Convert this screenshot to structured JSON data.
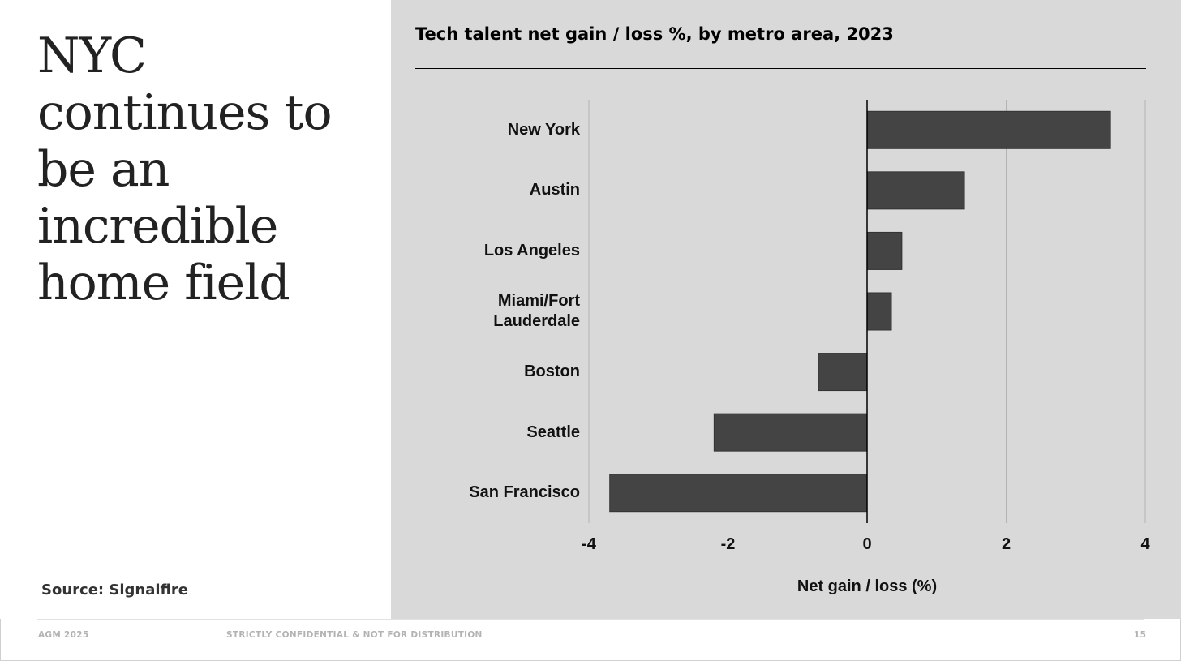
{
  "slide": {
    "headline": "NYC continues to be an incredible home field",
    "source": "Source: Signalfire"
  },
  "footer": {
    "left": "AGM 2025",
    "center": "STRICTLY CONFIDENTIAL & NOT FOR DISTRIBUTION",
    "page_number": "15"
  },
  "colors": {
    "bar": "#444444",
    "panel_background": "#d9d9d9",
    "gridline": "#b3b3b3"
  },
  "chart_data": {
    "type": "bar",
    "orientation": "horizontal",
    "title": "Tech talent net gain / loss %, by metro area, 2023",
    "xlabel": "Net gain / loss (%)",
    "ylabel": "",
    "categories": [
      "New York",
      "Austin",
      "Los Angeles",
      "Miami/Fort\nLauderdale",
      "Boston",
      "Seattle",
      "San Francisco"
    ],
    "values": [
      3.5,
      1.4,
      0.5,
      0.35,
      -0.7,
      -2.2,
      -3.7
    ],
    "xlim": [
      -4,
      4
    ],
    "xticks": [
      "-4",
      "-2",
      "0",
      "2",
      "4"
    ],
    "grid": "vertical",
    "legend": "none"
  }
}
